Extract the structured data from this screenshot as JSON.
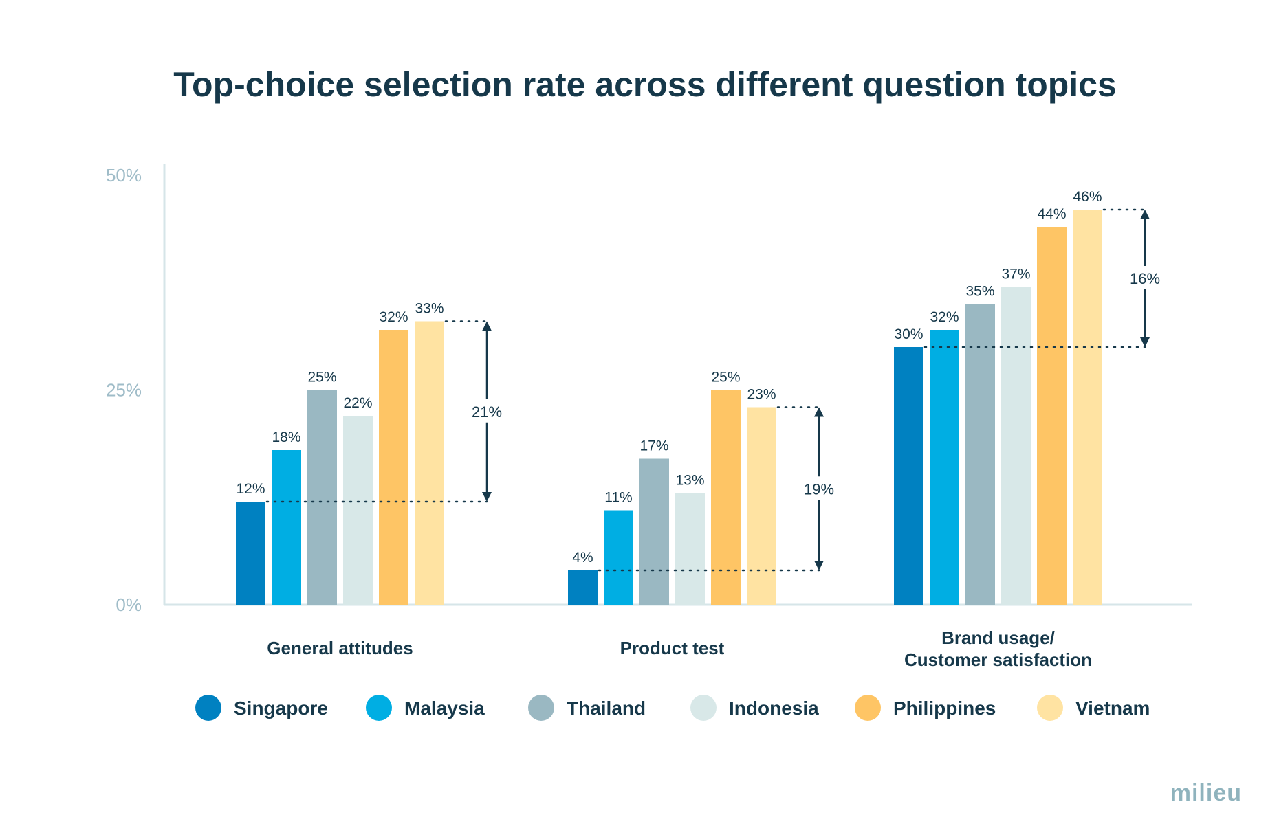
{
  "chart_data": {
    "type": "bar",
    "title": "Top-choice selection rate across different question topics",
    "ylim": [
      0,
      50
    ],
    "y_ticks": [
      "50%",
      "25%",
      "0%"
    ],
    "categories": [
      "General attitudes",
      "Product test",
      "Brand usage/\nCustomer satisfaction"
    ],
    "series": [
      {
        "name": "Singapore",
        "color": "#0081c1",
        "values": [
          12,
          4,
          30
        ],
        "labels": [
          "12%",
          "4%",
          "30%"
        ]
      },
      {
        "name": "Malaysia",
        "color": "#00aee3",
        "values": [
          18,
          11,
          32
        ],
        "labels": [
          "18%",
          "11%",
          "32%"
        ]
      },
      {
        "name": "Thailand",
        "color": "#9ab8c2",
        "values": [
          25,
          17,
          35
        ],
        "labels": [
          "25%",
          "17%",
          "35%"
        ]
      },
      {
        "name": "Indonesia",
        "color": "#d8e8e8",
        "values": [
          22,
          13,
          37
        ],
        "labels": [
          "22%",
          "13%",
          "37%"
        ]
      },
      {
        "name": "Philippines",
        "color": "#fec565",
        "values": [
          32,
          25,
          44
        ],
        "labels": [
          "32%",
          "25%",
          "44%"
        ]
      },
      {
        "name": "Vietnam",
        "color": "#ffe3a2",
        "values": [
          33,
          23,
          46
        ],
        "labels": [
          "33%",
          "23%",
          "46%"
        ]
      }
    ],
    "gaps": [
      {
        "low": 12,
        "high": 33,
        "label": "21%"
      },
      {
        "low": 4,
        "high": 23,
        "label": "19%"
      },
      {
        "low": 30,
        "high": 46,
        "label": "16%"
      }
    ],
    "legend_position": "bottom",
    "grid": false
  },
  "brand": "milieu"
}
